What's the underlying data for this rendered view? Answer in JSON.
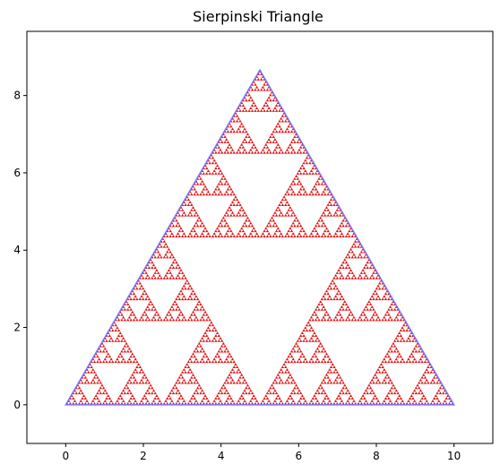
{
  "chart_data": {
    "type": "scatter",
    "title": "Sierpinski Triangle",
    "xlabel": "",
    "ylabel": "",
    "xlim": [
      -1,
      11
    ],
    "ylim": [
      -1,
      9.66
    ],
    "xticks": [
      0,
      2,
      4,
      6,
      8,
      10
    ],
    "yticks": [
      0,
      2,
      4,
      6,
      8
    ],
    "grid": false,
    "legend": "none",
    "triangle_vertices": [
      [
        0,
        0
      ],
      [
        10,
        0
      ],
      [
        5,
        8.66
      ]
    ],
    "outline_color": "#7777ff",
    "point_color": "#dd0000",
    "recursion_depth": 7
  }
}
